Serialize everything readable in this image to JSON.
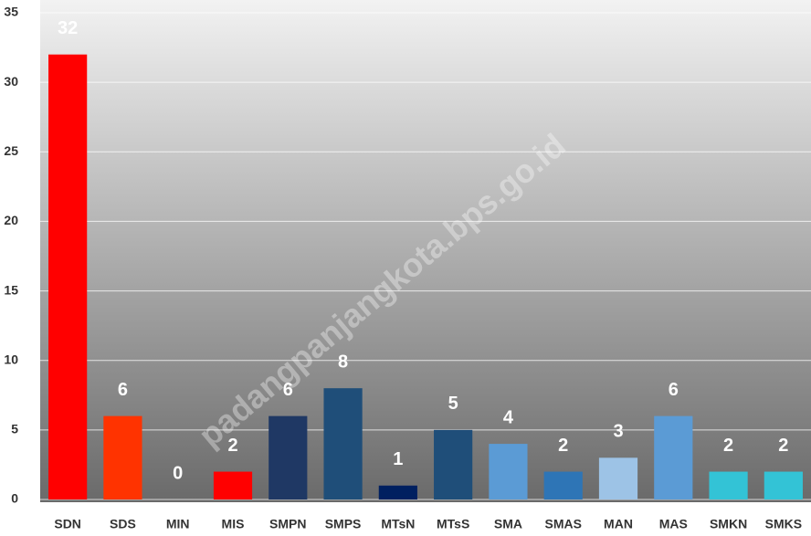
{
  "chart_data": {
    "type": "bar",
    "categories": [
      "SDN",
      "SDS",
      "MIN",
      "MIS",
      "SMPN",
      "SMPS",
      "MTsN",
      "MTsS",
      "SMA",
      "SMAS",
      "MAN",
      "MAS",
      "SMKN",
      "SMKS"
    ],
    "values": [
      32,
      6,
      0,
      2,
      6,
      8,
      1,
      5,
      4,
      2,
      3,
      6,
      2,
      2
    ],
    "colors": [
      "#ff0000",
      "#ff3300",
      "#ff0000",
      "#ff0000",
      "#1f3864",
      "#1f4e79",
      "#002060",
      "#1f4e79",
      "#5b9bd5",
      "#2e75b6",
      "#9dc3e6",
      "#5b9bd5",
      "#33c3d6",
      "#33c3d6"
    ],
    "ylim": [
      0,
      35
    ],
    "yticks": [
      0,
      5,
      10,
      15,
      20,
      25,
      30,
      35
    ],
    "grid": true,
    "watermark": "padangpanjangkota.bps.go.id"
  }
}
